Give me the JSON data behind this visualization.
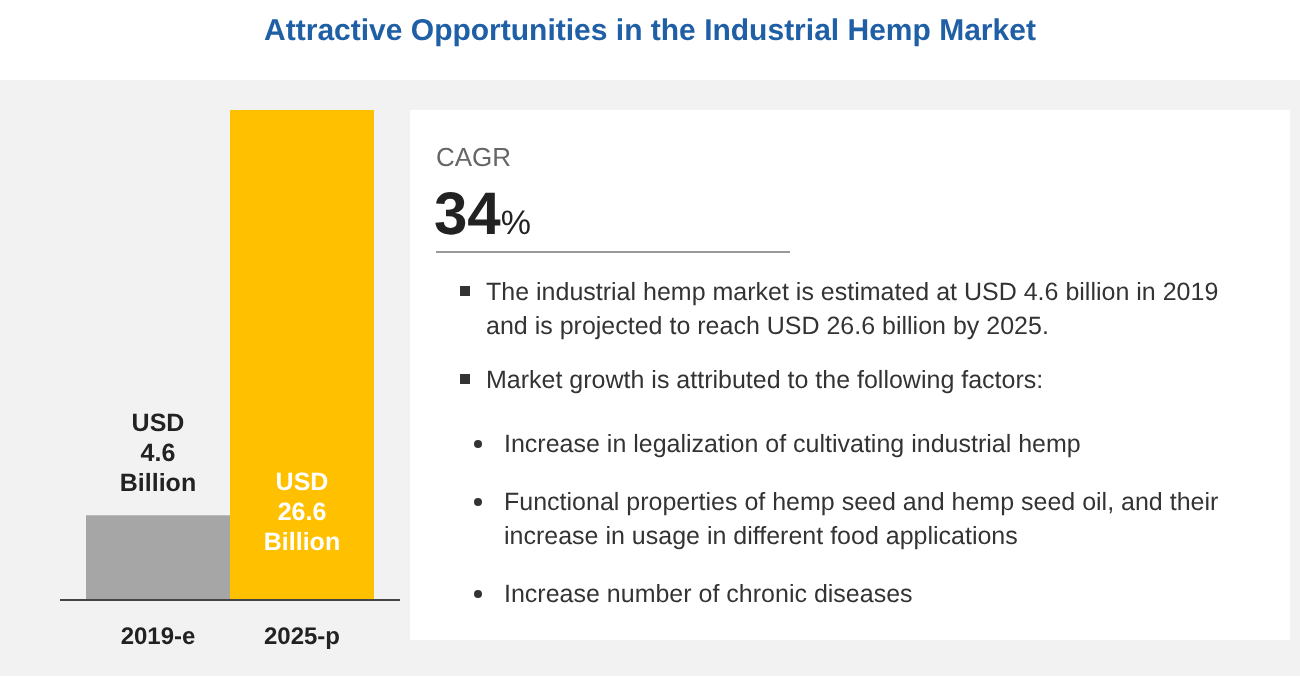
{
  "chart_data": [
    {
      "type": "bar",
      "title": "Attractive Opportunities in the Industrial Hemp Market",
      "categories": [
        "2019-e",
        "2025-p"
      ],
      "values": [
        4.6,
        26.6
      ],
      "colors": [
        "#a6a6a6",
        "#ffc000"
      ],
      "value_labels": [
        "USD\n4.6\nBillion",
        "USD\n26.6\nBillion"
      ]
    },
    {
      "type": "other",
      "title": "CAGR",
      "subtitle": "34%",
      "annotations": [
        "The industrial hemp market is estimated at USD 4.6 billion in 2019 and is projected to reach USD 26.6 billion by 2025.",
        "Market growth is attributed to the following factors:",
        "Increase in legalization of cultivating industrial hemp",
        "Functional properties of hemp seed and hemp seed oil, and their increase in usage in different food applications",
        "Increase number of chronic diseases"
      ]
    }
  ]
}
